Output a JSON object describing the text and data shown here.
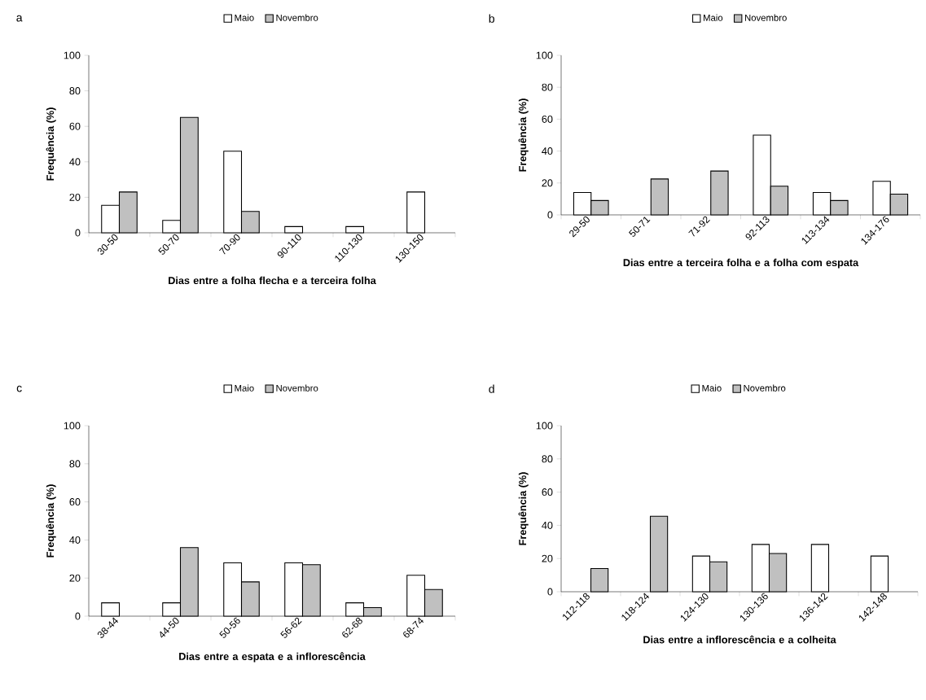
{
  "chart_data": [
    {
      "type": "bar",
      "title": "a",
      "xlabel": "Dias entre a folha flecha e a terceira folha",
      "ylabel": "Frequência (%)",
      "categories": [
        "30-50",
        "50-70",
        "70-90",
        "90-110",
        "110-130",
        "130-150"
      ],
      "series": [
        {
          "name": "Maio",
          "color": "#ffffff",
          "values": [
            15.5,
            7,
            46,
            3.5,
            3.5,
            23
          ]
        },
        {
          "name": "Novembro",
          "color": "#c0c0c0",
          "values": [
            23,
            65,
            12,
            null,
            null,
            null
          ]
        }
      ],
      "ylim": [
        0,
        100
      ],
      "yticks": [
        0,
        20,
        40,
        60,
        80,
        100
      ],
      "legend": "top"
    },
    {
      "type": "bar",
      "title": "b",
      "xlabel": "Dias entre a terceira folha e a folha com espata",
      "ylabel": "Frequência (%)",
      "categories": [
        "29-50",
        "50-71",
        "71-92",
        "92-113",
        "113-134",
        "134-176"
      ],
      "series": [
        {
          "name": "Maio",
          "color": "#ffffff",
          "values": [
            14,
            null,
            null,
            50,
            14,
            21
          ]
        },
        {
          "name": "Novembro",
          "color": "#c0c0c0",
          "values": [
            9,
            22.5,
            27.5,
            18,
            9,
            13
          ]
        }
      ],
      "ylim": [
        0,
        100
      ],
      "yticks": [
        0,
        20,
        40,
        60,
        80,
        100
      ],
      "legend": "top"
    },
    {
      "type": "bar",
      "title": "c",
      "xlabel": "Dias entre a espata e a inflorescência",
      "ylabel": "Frequência (%)",
      "categories": [
        "38-44",
        "44-50",
        "50-56",
        "56-62",
        "62-68",
        "68-74"
      ],
      "series": [
        {
          "name": "Maio",
          "color": "#ffffff",
          "values": [
            7,
            7,
            28,
            28,
            7,
            21.5
          ]
        },
        {
          "name": "Novembro",
          "color": "#c0c0c0",
          "values": [
            null,
            36,
            18,
            27,
            4.5,
            14
          ]
        }
      ],
      "ylim": [
        0,
        100
      ],
      "yticks": [
        0,
        20,
        40,
        60,
        80,
        100
      ],
      "legend": "top"
    },
    {
      "type": "bar",
      "title": "d",
      "xlabel": "Dias entre a inflorescência e a colheita",
      "ylabel": "Frequência (%)",
      "categories": [
        "112-118",
        "118-124",
        "124-130",
        "130-136",
        "136-142",
        "142-148"
      ],
      "series": [
        {
          "name": "Maio",
          "color": "#ffffff",
          "values": [
            null,
            null,
            21.5,
            28.5,
            28.5,
            21.5
          ]
        },
        {
          "name": "Novembro",
          "color": "#c0c0c0",
          "values": [
            14,
            45.5,
            18,
            23,
            null,
            null
          ]
        }
      ],
      "ylim": [
        0,
        100
      ],
      "yticks": [
        0,
        20,
        40,
        60,
        80,
        100
      ],
      "legend": "top"
    }
  ]
}
